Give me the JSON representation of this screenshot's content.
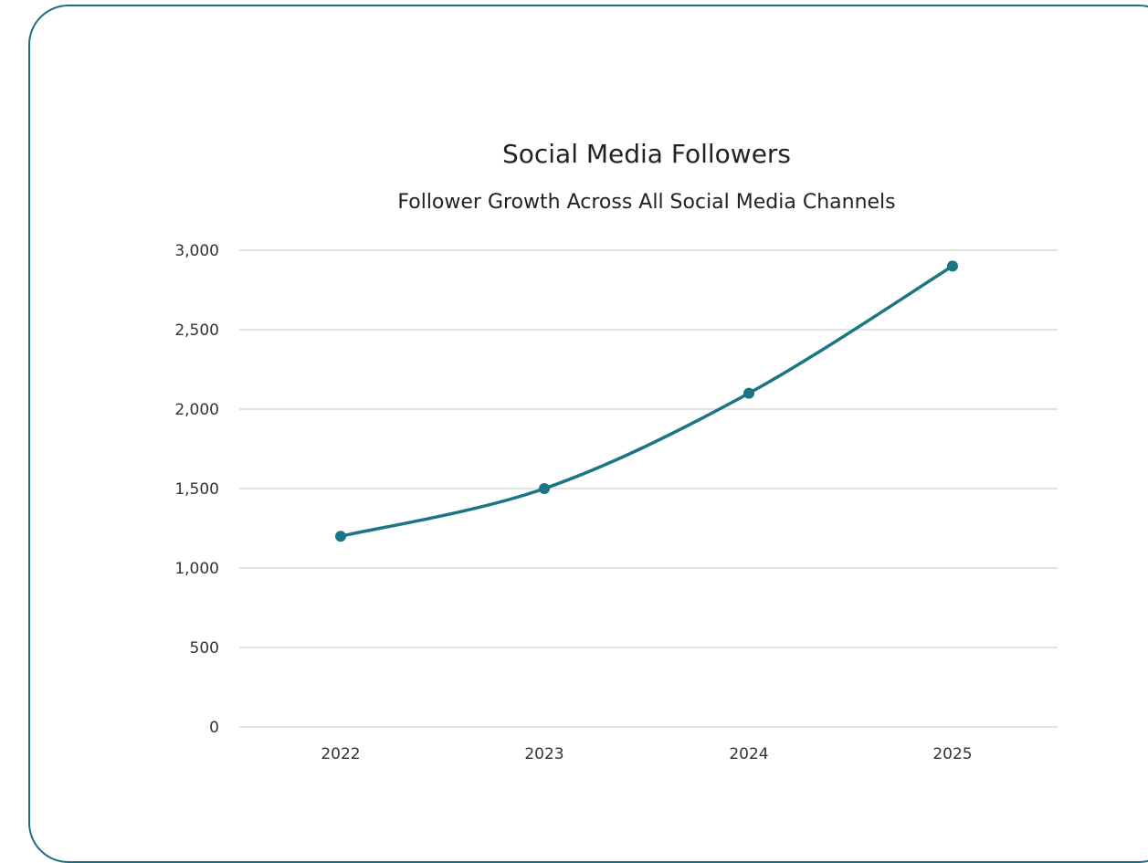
{
  "chart_data": {
    "type": "line",
    "title": "Social Media Followers",
    "subtitle": "Follower Growth Across All Social Media Channels",
    "categories": [
      "2022",
      "2023",
      "2024",
      "2025"
    ],
    "series": [
      {
        "values": [
          1200,
          1500,
          2100,
          2900
        ]
      }
    ],
    "y_ticks": [
      0,
      500,
      1000,
      1500,
      2000,
      2500,
      3000
    ],
    "y_tick_labels": [
      "0",
      "500",
      "1,000",
      "1,500",
      "2,000",
      "2,500",
      "3,000"
    ],
    "ylim": [
      0,
      3000
    ],
    "grid": true,
    "legend": "none",
    "line_color": "#1a7585"
  },
  "frame_color": "#1b6e82"
}
